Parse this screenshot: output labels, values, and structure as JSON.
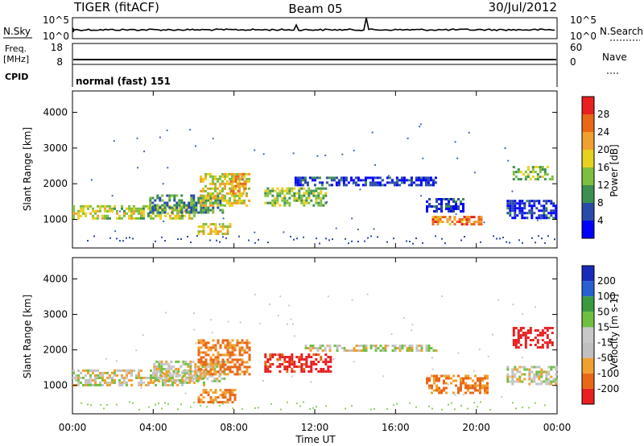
{
  "header": {
    "station": "TIGER (fitACF)",
    "beam": "Beam 05",
    "date": "30/Jul/2012"
  },
  "top_panels": {
    "nsky_label": "N.Sky",
    "nsearch_label": "N.Search",
    "nsky_ticks": [
      "10^5",
      "10^0"
    ],
    "nsearch_ticks": [
      "10^5",
      "10^0"
    ],
    "freq_label_1": "Freq.",
    "freq_label_2": "[MHz]",
    "freq_ticks": [
      "18",
      "8"
    ],
    "nave_label": "Nave",
    "nave_ticks": [
      "60",
      "0"
    ],
    "cpid_label": "CPID",
    "cpid_text": "normal (fast) 151"
  },
  "colors": {
    "power_scale": [
      "#0000ff",
      "#2a4aa8",
      "#3c8f50",
      "#7fbf3f",
      "#e6d020",
      "#f0a030",
      "#e86818",
      "#e82020"
    ],
    "velocity_scale": [
      "#1a2ab8",
      "#2860d0",
      "#3a9a40",
      "#70c040",
      "#c8c8c8",
      "#c0c0c0",
      "#f0a030",
      "#e86818",
      "#e82020"
    ]
  },
  "chart_data": [
    {
      "type": "heatmap",
      "panel": "power",
      "ylabel": "Slant Range [km]",
      "yticks": [
        "4000",
        "3000",
        "2000",
        "1000"
      ],
      "ylim": [
        200,
        4600
      ],
      "colorbar_label": "Power [dB]",
      "colorbar_ticks": [
        "28",
        "24",
        "20",
        "16",
        "12",
        "8",
        "4"
      ],
      "regions": [
        {
          "t": [
            0,
            6
          ],
          "range": [
            1050,
            1400
          ],
          "value": 18
        },
        {
          "t": [
            3.8,
            7.5
          ],
          "range": [
            1200,
            1700
          ],
          "value": 12
        },
        {
          "t": [
            6.3,
            8.8
          ],
          "range": [
            1400,
            2300
          ],
          "value": 20
        },
        {
          "t": [
            6.2,
            7.8
          ],
          "range": [
            600,
            900
          ],
          "value": 20
        },
        {
          "t": [
            7.8,
            8.6
          ],
          "range": [
            1700,
            2300
          ],
          "value": 24
        },
        {
          "t": [
            9.5,
            12.5
          ],
          "range": [
            1400,
            1900
          ],
          "value": 16
        },
        {
          "t": [
            11,
            18
          ],
          "range": [
            1950,
            2200
          ],
          "value": 6
        },
        {
          "t": [
            17.5,
            19.4
          ],
          "range": [
            1200,
            1600
          ],
          "value": 6
        },
        {
          "t": [
            17.8,
            20.3
          ],
          "range": [
            850,
            1100
          ],
          "value": 26
        },
        {
          "t": [
            21.5,
            24
          ],
          "range": [
            1050,
            1550
          ],
          "value": 6
        },
        {
          "t": [
            21.8,
            23.8
          ],
          "range": [
            2100,
            2500
          ],
          "value": 16
        }
      ]
    },
    {
      "type": "heatmap",
      "panel": "velocity",
      "ylabel": "Slant Range [km]",
      "yticks": [
        "4000",
        "3000",
        "2000",
        "1000"
      ],
      "ylim": [
        200,
        4600
      ],
      "colorbar_label": "Velocity [m s-1]",
      "colorbar_ticks": [
        "200",
        "100",
        "50",
        "15",
        "-15",
        "-50",
        "-100",
        "-200"
      ],
      "xlabel": "Time UT",
      "xticks": [
        "00:00",
        "04:00",
        "08:00",
        "12:00",
        "16:00",
        "20:00",
        "00:00"
      ],
      "xlim": [
        0,
        24
      ],
      "regions": [
        {
          "t": [
            0,
            6.5
          ],
          "range": [
            1000,
            1450
          ],
          "value": 0
        },
        {
          "t": [
            4,
            7.5
          ],
          "range": [
            1150,
            1700
          ],
          "value": 0
        },
        {
          "t": [
            6.2,
            8.8
          ],
          "range": [
            1300,
            2300
          ],
          "value": -60
        },
        {
          "t": [
            6.2,
            8
          ],
          "range": [
            550,
            900
          ],
          "value": -50
        },
        {
          "t": [
            9.5,
            12.8
          ],
          "range": [
            1400,
            1900
          ],
          "value": -120
        },
        {
          "t": [
            11.5,
            18
          ],
          "range": [
            1950,
            2150
          ],
          "value": 0
        },
        {
          "t": [
            17.5,
            20.5
          ],
          "range": [
            800,
            1300
          ],
          "value": -60
        },
        {
          "t": [
            21.5,
            24
          ],
          "range": [
            1050,
            1550
          ],
          "value": 0
        },
        {
          "t": [
            21.8,
            23.8
          ],
          "range": [
            2100,
            2650
          ],
          "value": -200
        }
      ]
    }
  ]
}
